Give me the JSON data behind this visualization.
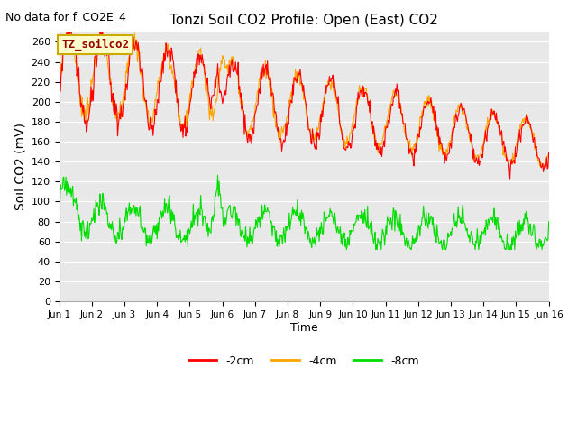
{
  "title": "Tonzi Soil CO2 Profile: Open (East) CO2",
  "subtitle": "No data for f_CO2E_4",
  "ylabel": "Soil CO2 (mV)",
  "xlabel": "Time",
  "legend_label": "TZ_soilco2",
  "series_labels": [
    "-2cm",
    "-4cm",
    "-8cm"
  ],
  "series_colors": [
    "#ff0000",
    "#ffa500",
    "#00dd00"
  ],
  "ylim": [
    0,
    270
  ],
  "yticks": [
    0,
    20,
    40,
    60,
    80,
    100,
    120,
    140,
    160,
    180,
    200,
    220,
    240,
    260
  ],
  "xtick_labels": [
    "Jun 1",
    "Jun 2",
    "Jun 3",
    "Jun 4",
    "Jun 5",
    "Jun 6",
    "Jun 7",
    "Jun 8",
    "Jun 9",
    "Jun 10",
    "Jun 11",
    "Jun 12",
    "Jun 13",
    "Jun 14",
    "Jun 15",
    "Jun 16"
  ],
  "fig_bg_color": "#ffffff",
  "plot_bg_color": "#e8e8e8",
  "grid_color": "#ffffff",
  "linewidth": 0.8,
  "title_fontsize": 11,
  "subtitle_fontsize": 9,
  "tick_fontsize": 8,
  "ylabel_fontsize": 10,
  "xlabel_fontsize": 9,
  "legend_fontsize": 9
}
